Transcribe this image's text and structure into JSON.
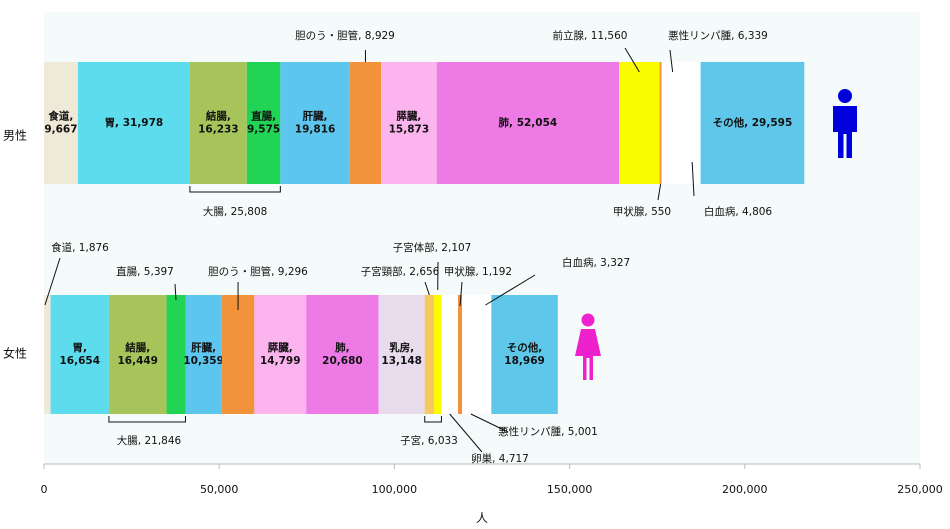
{
  "chart_data": {
    "type": "bar",
    "orientation": "horizontal",
    "stacked": true,
    "xlabel": "人",
    "xlim": [
      0,
      250000
    ],
    "xticks": [
      "0",
      "50,000",
      "100,000",
      "150,000",
      "200,000",
      "250,000"
    ],
    "xtick_values": [
      0,
      50000,
      100000,
      150000,
      200000,
      250000
    ],
    "rows": [
      {
        "label": "男性",
        "icon": "male-person-icon",
        "icon_color": "#0000dd",
        "segments": [
          {
            "name": "食道",
            "value": 9667,
            "color": "#efead8",
            "label_text": "食道,\n9,667",
            "placement": "inside"
          },
          {
            "name": "胃",
            "value": 31978,
            "color": "#5ddcee",
            "label_text": "胃, 31,978",
            "placement": "inside"
          },
          {
            "name": "結腸",
            "value": 16233,
            "color": "#a6c45a",
            "label_text": "結腸,\n16,233",
            "placement": "inside"
          },
          {
            "name": "直腸",
            "value": 9575,
            "color": "#22d455",
            "label_text": "直腸,\n9,575",
            "placement": "inside"
          },
          {
            "name": "肝臓",
            "value": 19816,
            "color": "#5cc6ee",
            "label_text": "肝臓,\n19,816",
            "placement": "inside"
          },
          {
            "name": "胆のう・胆管",
            "value": 8929,
            "color": "#f2923a",
            "label_text": "胆のう・胆管, 8,929",
            "placement": "above"
          },
          {
            "name": "膵臓",
            "value": 15873,
            "color": "#fcb4ee",
            "label_text": "膵臓,\n15,873",
            "placement": "inside"
          },
          {
            "name": "肺",
            "value": 52054,
            "color": "#ee7ae6",
            "label_text": "肺, 52,054",
            "placement": "inside"
          },
          {
            "name": "前立腺",
            "value": 11560,
            "color": "#fcfc00",
            "label_text": "前立腺, 11,560",
            "placement": "above"
          },
          {
            "name": "甲状腺",
            "value": 550,
            "color": "#f2923a",
            "label_text": "甲状腺, 550",
            "placement": "below"
          },
          {
            "name": "悪性リンパ腫",
            "value": 6339,
            "color": "#ffffff",
            "label_text": "悪性リンパ腫, 6,339",
            "placement": "above"
          },
          {
            "name": "白血病",
            "value": 4806,
            "color": "#ffffff",
            "label_text": "白血病, 4,806",
            "placement": "below"
          },
          {
            "name": "その他",
            "value": 29595,
            "color": "#5ec7ea",
            "label_text": "その他, 29,595",
            "placement": "inside"
          }
        ],
        "bracket": {
          "label_text": "大腸, 25,808",
          "value": 25808
        }
      },
      {
        "label": "女性",
        "icon": "female-person-icon",
        "icon_color": "#ee22cc",
        "segments": [
          {
            "name": "食道",
            "value": 1876,
            "color": "#efead8",
            "label_text": "食道, 1,876",
            "placement": "above"
          },
          {
            "name": "胃",
            "value": 16654,
            "color": "#5ddcee",
            "label_text": "胃,\n16,654",
            "placement": "inside"
          },
          {
            "name": "結腸",
            "value": 16449,
            "color": "#a6c45a",
            "label_text": "結腸,\n16,449",
            "placement": "inside"
          },
          {
            "name": "直腸",
            "value": 5397,
            "color": "#22d455",
            "label_text": "直腸, 5,397",
            "placement": "above"
          },
          {
            "name": "肝臓",
            "value": 10359,
            "color": "#5cc6ee",
            "label_text": "肝臓,\n10,359",
            "placement": "inside"
          },
          {
            "name": "胆のう・胆管",
            "value": 9296,
            "color": "#f2923a",
            "label_text": "胆のう・胆管, 9,296",
            "placement": "above"
          },
          {
            "name": "膵臓",
            "value": 14799,
            "color": "#fcb4ee",
            "label_text": "膵臓,\n14,799",
            "placement": "inside"
          },
          {
            "name": "肺",
            "value": 20680,
            "color": "#ee7ae6",
            "label_text": "肺,\n20,680",
            "placement": "inside"
          },
          {
            "name": "乳房",
            "value": 13148,
            "color": "#e8dcec",
            "label_text": "乳房,\n13,148",
            "placement": "inside"
          },
          {
            "name": "子宮頸部",
            "value": 2656,
            "color": "#f8c860",
            "label_text": "子宮頸部, 2,656",
            "placement": "above"
          },
          {
            "name": "子宮体部",
            "value": 2107,
            "color": "#fcfc00",
            "label_text": "子宮体部, 2,107",
            "placement": "above"
          },
          {
            "name": "卵巣",
            "value": 4717,
            "color": "#ffffff",
            "label_text": "卵巣, 4,717",
            "placement": "below"
          },
          {
            "name": "甲状腺",
            "value": 1192,
            "color": "#f2923a",
            "label_text": "甲状腺, 1,192",
            "placement": "above"
          },
          {
            "name": "悪性リンパ腫",
            "value": 5001,
            "color": "#ffffff",
            "label_text": "悪性リンパ腫, 5,001",
            "placement": "below"
          },
          {
            "name": "白血病",
            "value": 3327,
            "color": "#ffffff",
            "label_text": "白血病, 3,327",
            "placement": "above"
          },
          {
            "name": "その他",
            "value": 18969,
            "color": "#5ec7ea",
            "label_text": "その他,\n18,969",
            "placement": "inside"
          }
        ],
        "bracket": {
          "label_text": "大腸, 21,846",
          "value": 21846
        },
        "bracket2": {
          "label_text": "子宮, 6,033",
          "value": 6033
        }
      }
    ]
  }
}
